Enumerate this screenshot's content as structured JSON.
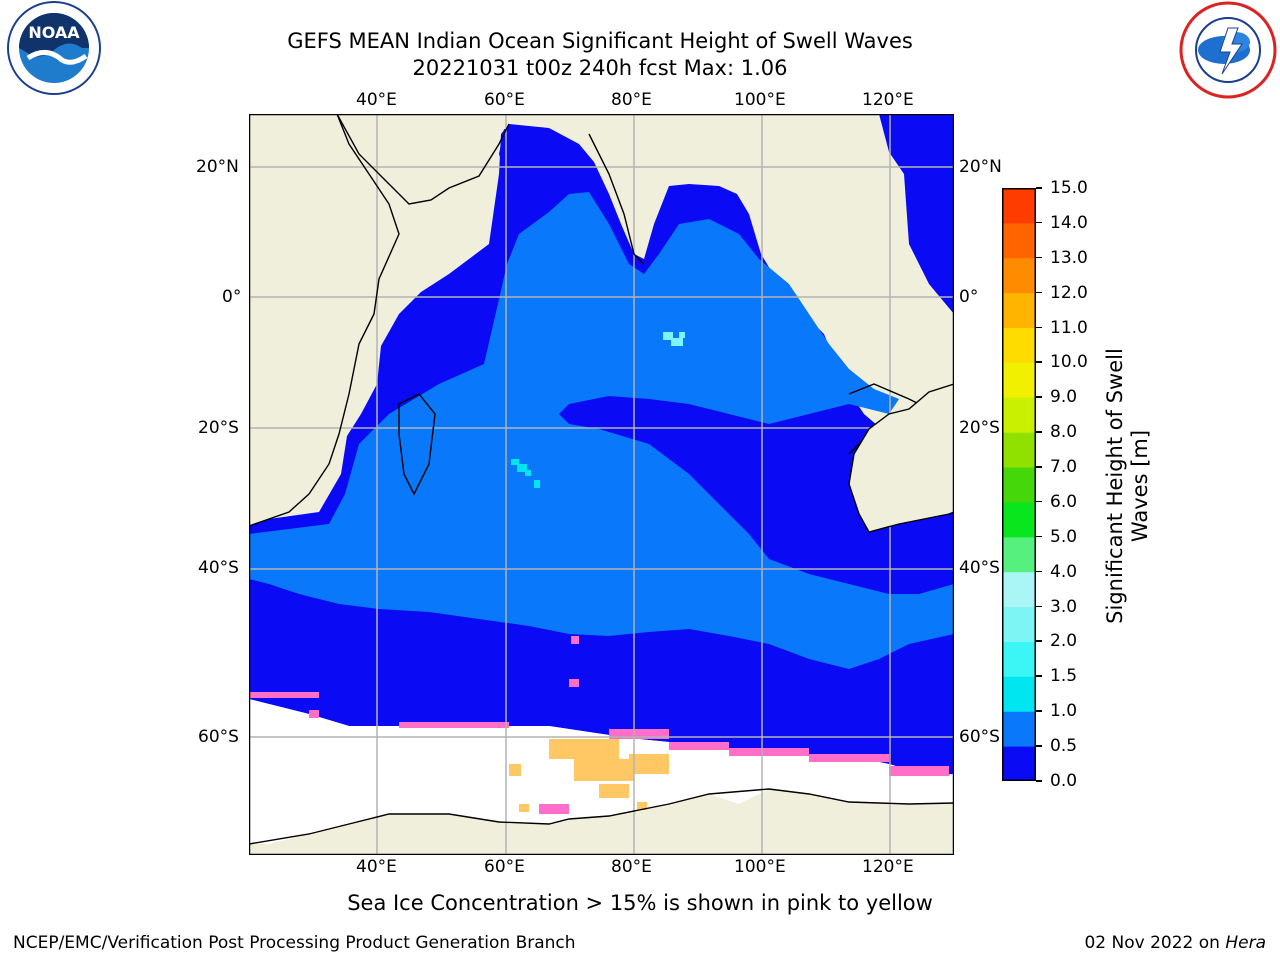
{
  "title_line1": "GEFS MEAN Indian Ocean Significant Height of Swell Waves",
  "title_line2": "20221031 t00z 240h fcst   Max: 1.06",
  "lon_labels": [
    "40°E",
    "60°E",
    "80°E",
    "100°E",
    "120°E"
  ],
  "lat_labels": [
    "20°N",
    "0°",
    "20°S",
    "40°S",
    "60°S"
  ],
  "colorbar": {
    "title_line1": "Significant Height of Swell",
    "title_line2": "Waves [m]",
    "ticks": [
      "0.0",
      "0.5",
      "1.0",
      "1.5",
      "2.0",
      "3.0",
      "4.0",
      "5.0",
      "6.0",
      "7.0",
      "8.0",
      "9.0",
      "10.0",
      "11.0",
      "12.0",
      "13.0",
      "14.0",
      "15.0"
    ],
    "colors": [
      "#0a0af5",
      "#0a78fa",
      "#00e6f0",
      "#3cf5f5",
      "#7df5f5",
      "#aaf5f5",
      "#55f07d",
      "#0ae61e",
      "#46d70a",
      "#91e100",
      "#c8f000",
      "#f0f000",
      "#ffdc00",
      "#ffb400",
      "#ff8c00",
      "#ff6400",
      "#ff3c00",
      "#ff0a00"
    ]
  },
  "caption": "Sea Ice Concentration > 15% is shown in pink to yellow",
  "footer": {
    "left": "NCEP/EMC/Verification Post Processing Product Generation Branch",
    "right_date": "02 Nov 2022 on",
    "right_host": "Hera"
  },
  "logos": {
    "noaa_text": "NOAA",
    "noaa_ring": "NATIONAL OCEANIC AND ATMOSPHERIC ADMINISTRATION · U.S. DEPARTMENT OF COMMERCE",
    "nws_ring": "NATIONAL WEATHER SERVICE"
  },
  "palette": {
    "land": "#efefdc",
    "ocean_dark": "#0a0af5",
    "ocean_mid": "#0a78fa",
    "sea_ice_empty": "#ffffff",
    "ice_pink": "#ff6ec8",
    "ice_orange": "#ffc864",
    "grid": "#b4b4b4"
  }
}
